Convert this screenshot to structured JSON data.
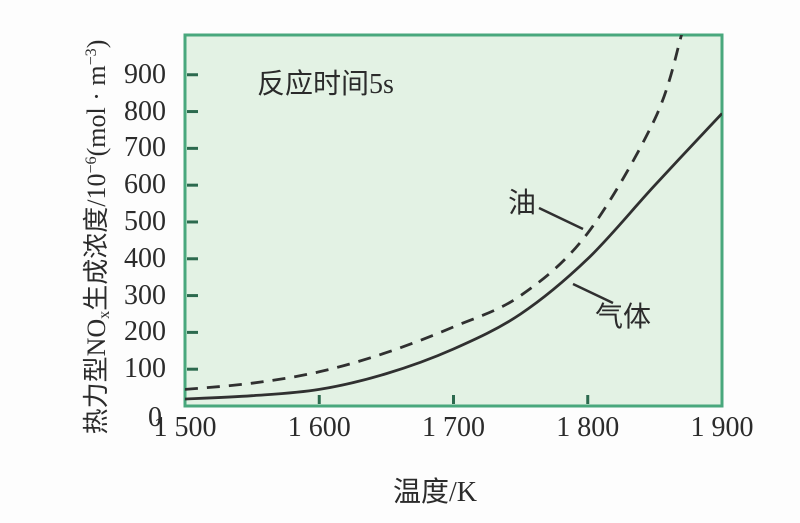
{
  "page": {
    "background": "#fdfdfd"
  },
  "chart_data": {
    "type": "line",
    "title": "",
    "annotation": "反应时间5s",
    "xlabel": "温度/K",
    "ylabel": "热力型NOx生成浓度/10−6(mol · m−3)",
    "ylabel_parts": {
      "p1": "热力型NO",
      "sub": "x",
      "p2": "生成浓度/10",
      "sup1": "−6",
      "p3": "(mol · m",
      "sup2": "−3",
      "p4": ")"
    },
    "xlim": [
      1500,
      1900
    ],
    "ylim": [
      0,
      1008
    ],
    "grid": false,
    "legend_position": "none (curves labeled inline with leader lines)",
    "x_ticks": [
      {
        "value": 1500,
        "label": "1 500"
      },
      {
        "value": 1600,
        "label": "1 600"
      },
      {
        "value": 1700,
        "label": "1 700"
      },
      {
        "value": 1800,
        "label": "1 800"
      },
      {
        "value": 1900,
        "label": "1 900"
      }
    ],
    "y_ticks": [
      {
        "value": 0,
        "label": "0"
      },
      {
        "value": 100,
        "label": "100"
      },
      {
        "value": 200,
        "label": "200"
      },
      {
        "value": 300,
        "label": "300"
      },
      {
        "value": 400,
        "label": "400"
      },
      {
        "value": 500,
        "label": "500"
      },
      {
        "value": 600,
        "label": "600"
      },
      {
        "value": 700,
        "label": "700"
      },
      {
        "value": 800,
        "label": "800"
      },
      {
        "value": 900,
        "label": "900"
      }
    ],
    "series": [
      {
        "name": "油",
        "line_style": "dashed",
        "x": [
          1500,
          1550,
          1600,
          1650,
          1700,
          1750,
          1800,
          1850,
          1870
        ],
        "values": [
          45,
          62,
          93,
          145,
          215,
          300,
          470,
          780,
          1010
        ]
      },
      {
        "name": "气体",
        "line_style": "solid",
        "x": [
          1500,
          1550,
          1600,
          1650,
          1700,
          1750,
          1800,
          1850,
          1900
        ],
        "values": [
          19,
          28,
          45,
          88,
          155,
          250,
          400,
          600,
          795
        ]
      }
    ],
    "colors": {
      "plot_bg": "#e3f2e4",
      "plot_border": "#49a87d",
      "curve": "#303030",
      "tick": "#2c6a4e",
      "text": "#2b2b2b"
    }
  }
}
